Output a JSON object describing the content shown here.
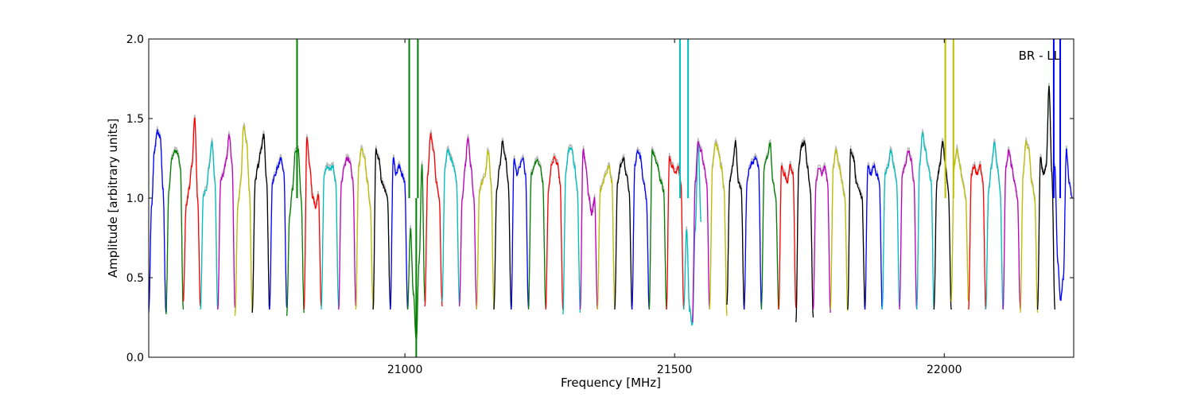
{
  "chart_data": {
    "type": "line",
    "xlabel": "Frequency [MHz]",
    "ylabel": "Amplitude [arbitrary units]",
    "annotation": "BR - LL",
    "xlim": [
      20525,
      22240
    ],
    "ylim": [
      0.0,
      2.0
    ],
    "xticks": [
      21000,
      21500,
      22000
    ],
    "xtick_labels": [
      "21000",
      "21500",
      "22000"
    ],
    "yticks": [
      0.0,
      0.5,
      1.0,
      1.5,
      2.0
    ],
    "ytick_labels": [
      "0.0",
      "0.5",
      "1.0",
      "1.5",
      "2.0"
    ],
    "grid": false,
    "colors": [
      "#0000ff",
      "#008000",
      "#ff0000",
      "#00bfbf",
      "#bf00bf",
      "#bfbf00",
      "#000000"
    ],
    "background_color": "#bbbbbb",
    "channel_width_mhz": 32,
    "series": [
      {
        "color": "#0000ff",
        "x_start": 20525,
        "profile": [
          0.28,
          0.95,
          1.3,
          1.42,
          1.38,
          1.05,
          0.28
        ]
      },
      {
        "color": "#008000",
        "x_start": 20557,
        "profile": [
          0.27,
          1.05,
          1.25,
          1.3,
          1.28,
          1.2,
          0.3
        ]
      },
      {
        "color": "#ff0000",
        "x_start": 20589,
        "profile": [
          0.35,
          0.95,
          1.05,
          1.2,
          1.5,
          1.0,
          0.32
        ]
      },
      {
        "color": "#00bfbf",
        "x_start": 20621,
        "profile": [
          0.3,
          1.02,
          1.05,
          1.2,
          1.35,
          1.1,
          0.3
        ]
      },
      {
        "color": "#bf00bf",
        "x_start": 20653,
        "profile": [
          0.3,
          1.1,
          1.15,
          1.25,
          1.4,
          1.2,
          0.31
        ]
      },
      {
        "color": "#bfbf00",
        "x_start": 20685,
        "profile": [
          0.26,
          0.95,
          1.1,
          1.45,
          1.35,
          1.05,
          0.28
        ]
      },
      {
        "color": "#000000",
        "x_start": 20717,
        "profile": [
          0.28,
          1.1,
          1.2,
          1.3,
          1.4,
          1.1,
          0.3
        ]
      },
      {
        "color": "#0000ff",
        "x_start": 20749,
        "profile": [
          0.3,
          1.1,
          1.15,
          1.2,
          1.25,
          1.15,
          0.31
        ]
      },
      {
        "color": "#008000",
        "x_start": 20781,
        "profile": [
          0.26,
          0.9,
          1.05,
          1.3,
          1.3,
          1.0,
          0.28
        ],
        "spikes": [
          {
            "x": 20800,
            "y": 2.0
          }
        ]
      },
      {
        "color": "#ff0000",
        "x_start": 20813,
        "profile": [
          0.3,
          1.38,
          1.2,
          1.0,
          0.95,
          1.02,
          0.32
        ]
      },
      {
        "color": "#00bfbf",
        "x_start": 20845,
        "profile": [
          0.3,
          1.15,
          1.2,
          1.18,
          1.2,
          1.1,
          0.31
        ]
      },
      {
        "color": "#bf00bf",
        "x_start": 20877,
        "profile": [
          0.3,
          1.1,
          1.2,
          1.25,
          1.22,
          1.1,
          0.32
        ]
      },
      {
        "color": "#bfbf00",
        "x_start": 20909,
        "profile": [
          0.3,
          1.2,
          1.3,
          1.25,
          1.1,
          0.95,
          0.3
        ]
      },
      {
        "color": "#000000",
        "x_start": 20941,
        "profile": [
          0.3,
          1.3,
          1.25,
          1.1,
          1.05,
          1.0,
          0.3
        ]
      },
      {
        "color": "#0000ff",
        "x_start": 20973,
        "profile": [
          0.3,
          1.25,
          1.15,
          1.2,
          1.15,
          1.1,
          0.3
        ]
      },
      {
        "color": "#008000",
        "x_start": 21005,
        "profile": [
          0.3,
          0.8,
          0.4,
          0.1,
          0.6,
          1.2,
          0.35
        ],
        "spikes": [
          {
            "x": 21008,
            "y": 2.0
          },
          {
            "x": 21021,
            "y": 0.0
          },
          {
            "x": 21024,
            "y": 2.0
          }
        ]
      },
      {
        "color": "#ff0000",
        "x_start": 21037,
        "profile": [
          0.32,
          1.15,
          1.4,
          1.3,
          1.1,
          1.0,
          0.32
        ]
      },
      {
        "color": "#00bfbf",
        "x_start": 21069,
        "profile": [
          0.35,
          1.2,
          1.3,
          1.25,
          1.2,
          1.1,
          0.33
        ]
      },
      {
        "color": "#bf00bf",
        "x_start": 21101,
        "profile": [
          0.32,
          1.0,
          1.2,
          1.38,
          1.2,
          1.0,
          0.3
        ]
      },
      {
        "color": "#bfbf00",
        "x_start": 21133,
        "profile": [
          0.3,
          1.05,
          1.1,
          1.15,
          1.3,
          1.1,
          0.3
        ]
      },
      {
        "color": "#000000",
        "x_start": 21165,
        "profile": [
          0.3,
          1.05,
          1.2,
          1.35,
          1.25,
          1.1,
          0.3
        ]
      },
      {
        "color": "#0000ff",
        "x_start": 21197,
        "profile": [
          0.3,
          1.25,
          1.15,
          1.2,
          1.25,
          1.15,
          0.31
        ]
      },
      {
        "color": "#008000",
        "x_start": 21229,
        "profile": [
          0.3,
          1.15,
          1.2,
          1.25,
          1.2,
          1.1,
          0.31
        ]
      },
      {
        "color": "#ff0000",
        "x_start": 21261,
        "profile": [
          0.3,
          1.05,
          1.2,
          1.25,
          1.22,
          1.1,
          0.3
        ]
      },
      {
        "color": "#00bfbf",
        "x_start": 21293,
        "profile": [
          0.27,
          1.15,
          1.3,
          1.32,
          1.2,
          1.05,
          0.28
        ]
      },
      {
        "color": "#bf00bf",
        "x_start": 21325,
        "profile": [
          0.3,
          1.3,
          1.2,
          1.0,
          0.9,
          1.0,
          0.3
        ]
      },
      {
        "color": "#bfbf00",
        "x_start": 21357,
        "profile": [
          0.3,
          1.05,
          1.1,
          1.15,
          1.2,
          1.1,
          0.31
        ]
      },
      {
        "color": "#000000",
        "x_start": 21389,
        "profile": [
          0.3,
          1.1,
          1.2,
          1.25,
          1.15,
          1.05,
          0.3
        ]
      },
      {
        "color": "#0000ff",
        "x_start": 21421,
        "profile": [
          0.3,
          1.2,
          1.3,
          1.25,
          1.1,
          1.0,
          0.3
        ]
      },
      {
        "color": "#008000",
        "x_start": 21453,
        "profile": [
          0.3,
          1.3,
          1.25,
          1.2,
          1.1,
          1.05,
          0.3
        ]
      },
      {
        "color": "#ff0000",
        "x_start": 21485,
        "profile": [
          0.3,
          1.25,
          1.2,
          1.15,
          1.2,
          1.1,
          0.3
        ]
      },
      {
        "color": "#00bfbf",
        "x_start": 21517,
        "profile": [
          0.3,
          0.8,
          0.3,
          0.2,
          0.8,
          1.35,
          0.85
        ],
        "spikes": [
          {
            "x": 21510,
            "y": 2.0
          },
          {
            "x": 21525,
            "y": 2.0
          }
        ]
      },
      {
        "color": "#bf00bf",
        "x_start": 21533,
        "profile": [
          0.22,
          1.1,
          1.35,
          1.3,
          1.2,
          1.1,
          0.3
        ]
      },
      {
        "color": "#bfbf00",
        "x_start": 21565,
        "profile": [
          0.3,
          1.2,
          1.35,
          1.3,
          1.2,
          1.05,
          0.26
        ]
      },
      {
        "color": "#000000",
        "x_start": 21597,
        "profile": [
          0.33,
          1.1,
          1.2,
          1.35,
          1.1,
          1.05,
          0.3
        ]
      },
      {
        "color": "#0000ff",
        "x_start": 21629,
        "profile": [
          0.3,
          1.1,
          1.2,
          1.22,
          1.25,
          1.2,
          0.31
        ]
      },
      {
        "color": "#008000",
        "x_start": 21661,
        "profile": [
          0.3,
          1.2,
          1.25,
          1.35,
          1.1,
          1.0,
          0.3
        ]
      },
      {
        "color": "#ff0000",
        "x_start": 21693,
        "profile": [
          0.3,
          1.2,
          1.15,
          1.1,
          1.2,
          1.15,
          0.31
        ]
      },
      {
        "color": "#000000",
        "x_start": 21725,
        "profile": [
          0.22,
          1.2,
          1.33,
          1.35,
          1.2,
          1.05,
          0.25
        ]
      },
      {
        "color": "#bf00bf",
        "x_start": 21757,
        "profile": [
          0.3,
          1.1,
          1.2,
          1.15,
          1.2,
          1.1,
          0.28
        ]
      },
      {
        "color": "#bfbf00",
        "x_start": 21789,
        "profile": [
          0.3,
          1.2,
          1.3,
          1.2,
          1.1,
          1.0,
          0.29
        ]
      },
      {
        "color": "#000000",
        "x_start": 21821,
        "profile": [
          0.3,
          1.3,
          1.25,
          1.1,
          1.05,
          1.0,
          0.3
        ]
      },
      {
        "color": "#0000ff",
        "x_start": 21853,
        "profile": [
          0.3,
          1.2,
          1.15,
          1.2,
          1.15,
          1.1,
          0.3
        ]
      },
      {
        "color": "#00bfbf",
        "x_start": 21885,
        "profile": [
          0.3,
          1.15,
          1.2,
          1.3,
          1.2,
          1.1,
          0.31
        ]
      },
      {
        "color": "#bf00bf",
        "x_start": 21917,
        "profile": [
          0.3,
          1.15,
          1.2,
          1.3,
          1.25,
          1.1,
          0.3
        ]
      },
      {
        "color": "#00bfbf",
        "x_start": 21949,
        "profile": [
          0.3,
          1.2,
          1.4,
          1.3,
          1.2,
          1.1,
          0.3
        ]
      },
      {
        "color": "#000000",
        "x_start": 21981,
        "profile": [
          0.3,
          1.1,
          1.2,
          1.35,
          1.2,
          1.05,
          0.3
        ]
      },
      {
        "color": "#bfbf00",
        "x_start": 22013,
        "profile": [
          0.35,
          1.2,
          1.3,
          1.2,
          1.1,
          1.0,
          0.35
        ],
        "spikes": [
          {
            "x": 22002,
            "y": 2.0
          },
          {
            "x": 22017,
            "y": 2.0
          }
        ]
      },
      {
        "color": "#ff0000",
        "x_start": 22045,
        "profile": [
          0.3,
          1.15,
          1.2,
          1.15,
          1.2,
          1.1,
          0.3
        ]
      },
      {
        "color": "#00bfbf",
        "x_start": 22077,
        "profile": [
          0.3,
          1.05,
          1.2,
          1.35,
          1.2,
          1.05,
          0.3
        ]
      },
      {
        "color": "#bf00bf",
        "x_start": 22109,
        "profile": [
          0.3,
          1.2,
          1.3,
          1.2,
          1.1,
          1.0,
          0.3
        ]
      },
      {
        "color": "#bfbf00",
        "x_start": 22141,
        "profile": [
          0.28,
          1.15,
          1.35,
          1.3,
          1.1,
          1.0,
          0.28
        ]
      },
      {
        "color": "#000000",
        "x_start": 22173,
        "profile": [
          0.3,
          1.25,
          1.15,
          1.2,
          1.7,
          1.15,
          0.3
        ]
      },
      {
        "color": "#0000ff",
        "x_start": 22205,
        "profile": [
          1.2,
          0.6,
          0.35,
          0.5,
          1.3,
          1.1,
          1.0
        ],
        "spikes": [
          {
            "x": 22203,
            "y": 2.0
          },
          {
            "x": 22215,
            "y": 2.0
          }
        ]
      }
    ]
  }
}
